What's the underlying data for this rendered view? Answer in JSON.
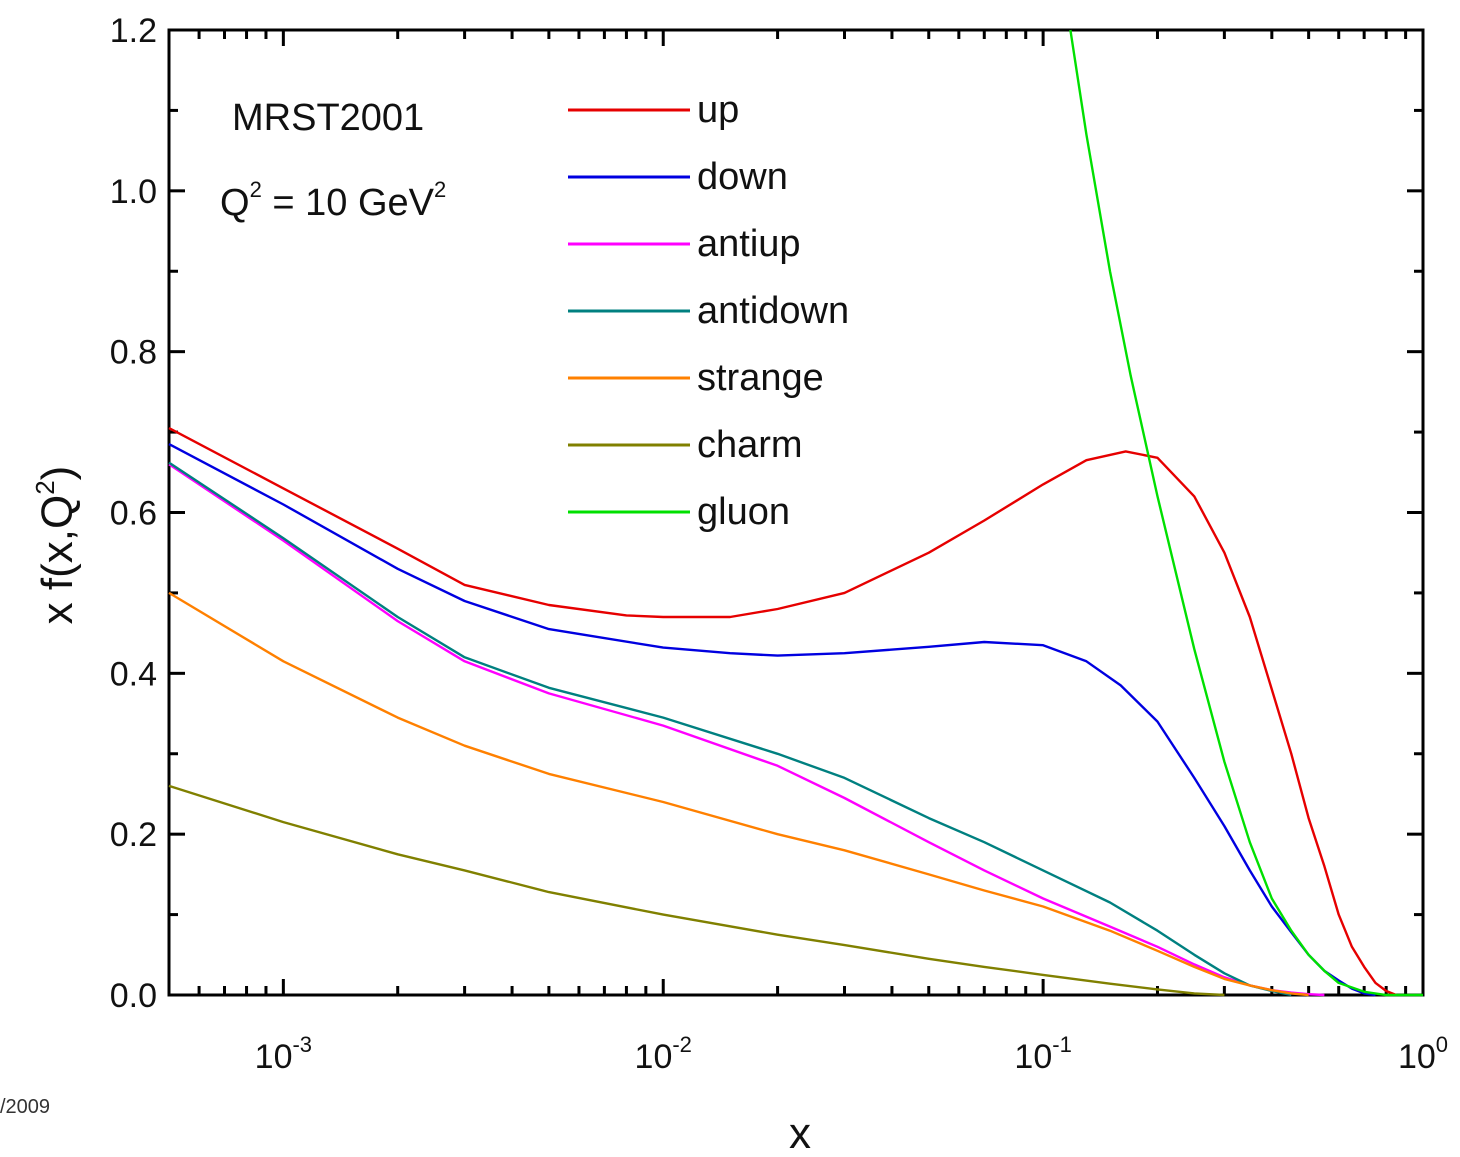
{
  "footer_text": "/2009",
  "chart_data": {
    "type": "line",
    "xlabel": "x",
    "ylabel": "x f(x,Q",
    "ylabel_sup": "2",
    "ylabel_tail": ")",
    "annotation": {
      "line1": "MRST2001",
      "line2_q": "Q",
      "line2_sup": "2",
      "line2_mid": " = 10 GeV",
      "line2_sup2": "2"
    },
    "x_scale": "log",
    "xlim": [
      0.0005,
      1.0
    ],
    "ylim": [
      0.0,
      1.2
    ],
    "x_ticks": [
      {
        "value": 0.001,
        "base": "10",
        "exp": "-3"
      },
      {
        "value": 0.01,
        "base": "10",
        "exp": "-2"
      },
      {
        "value": 0.1,
        "base": "10",
        "exp": "-1"
      },
      {
        "value": 1,
        "base": "10",
        "exp": "0"
      }
    ],
    "y_ticks": [
      {
        "value": 0.0,
        "label": "0.0"
      },
      {
        "value": 0.2,
        "label": "0.2"
      },
      {
        "value": 0.4,
        "label": "0.4"
      },
      {
        "value": 0.6,
        "label": "0.6"
      },
      {
        "value": 0.8,
        "label": "0.8"
      },
      {
        "value": 1.0,
        "label": "1.0"
      },
      {
        "value": 1.2,
        "label": "1.2"
      }
    ],
    "legend_position": "top-center",
    "grid": false,
    "series": [
      {
        "name": "up",
        "color": "#e60000",
        "points": [
          [
            0.0005,
            0.705
          ],
          [
            0.001,
            0.63
          ],
          [
            0.002,
            0.555
          ],
          [
            0.003,
            0.51
          ],
          [
            0.005,
            0.485
          ],
          [
            0.008,
            0.472
          ],
          [
            0.01,
            0.47
          ],
          [
            0.015,
            0.47
          ],
          [
            0.02,
            0.48
          ],
          [
            0.03,
            0.5
          ],
          [
            0.05,
            0.55
          ],
          [
            0.07,
            0.59
          ],
          [
            0.1,
            0.635
          ],
          [
            0.13,
            0.665
          ],
          [
            0.165,
            0.676
          ],
          [
            0.2,
            0.668
          ],
          [
            0.25,
            0.62
          ],
          [
            0.3,
            0.55
          ],
          [
            0.35,
            0.47
          ],
          [
            0.4,
            0.38
          ],
          [
            0.45,
            0.3
          ],
          [
            0.5,
            0.22
          ],
          [
            0.55,
            0.16
          ],
          [
            0.6,
            0.1
          ],
          [
            0.65,
            0.06
          ],
          [
            0.7,
            0.035
          ],
          [
            0.75,
            0.015
          ],
          [
            0.8,
            0.005
          ],
          [
            0.85,
            0.0
          ]
        ]
      },
      {
        "name": "down",
        "color": "#0000e0",
        "points": [
          [
            0.0005,
            0.685
          ],
          [
            0.001,
            0.61
          ],
          [
            0.002,
            0.53
          ],
          [
            0.003,
            0.49
          ],
          [
            0.005,
            0.455
          ],
          [
            0.01,
            0.432
          ],
          [
            0.015,
            0.425
          ],
          [
            0.02,
            0.422
          ],
          [
            0.03,
            0.425
          ],
          [
            0.05,
            0.433
          ],
          [
            0.07,
            0.439
          ],
          [
            0.1,
            0.435
          ],
          [
            0.13,
            0.415
          ],
          [
            0.16,
            0.385
          ],
          [
            0.2,
            0.34
          ],
          [
            0.25,
            0.27
          ],
          [
            0.3,
            0.21
          ],
          [
            0.35,
            0.155
          ],
          [
            0.4,
            0.11
          ],
          [
            0.45,
            0.078
          ],
          [
            0.5,
            0.05
          ],
          [
            0.55,
            0.03
          ],
          [
            0.6,
            0.018
          ],
          [
            0.65,
            0.008
          ],
          [
            0.7,
            0.002
          ],
          [
            0.75,
            0.0
          ]
        ]
      },
      {
        "name": "antiup",
        "color": "#ff00ff",
        "points": [
          [
            0.0005,
            0.66
          ],
          [
            0.001,
            0.565
          ],
          [
            0.002,
            0.465
          ],
          [
            0.003,
            0.415
          ],
          [
            0.005,
            0.375
          ],
          [
            0.01,
            0.335
          ],
          [
            0.02,
            0.285
          ],
          [
            0.03,
            0.245
          ],
          [
            0.05,
            0.19
          ],
          [
            0.07,
            0.155
          ],
          [
            0.1,
            0.12
          ],
          [
            0.15,
            0.085
          ],
          [
            0.2,
            0.06
          ],
          [
            0.25,
            0.038
          ],
          [
            0.3,
            0.022
          ],
          [
            0.35,
            0.012
          ],
          [
            0.4,
            0.006
          ],
          [
            0.45,
            0.003
          ],
          [
            0.5,
            0.001
          ],
          [
            0.55,
            0.0
          ]
        ]
      },
      {
        "name": "antidown",
        "color": "#008080",
        "points": [
          [
            0.0005,
            0.662
          ],
          [
            0.001,
            0.568
          ],
          [
            0.002,
            0.47
          ],
          [
            0.003,
            0.42
          ],
          [
            0.005,
            0.382
          ],
          [
            0.01,
            0.345
          ],
          [
            0.02,
            0.3
          ],
          [
            0.03,
            0.27
          ],
          [
            0.05,
            0.22
          ],
          [
            0.07,
            0.19
          ],
          [
            0.1,
            0.155
          ],
          [
            0.15,
            0.115
          ],
          [
            0.2,
            0.08
          ],
          [
            0.25,
            0.05
          ],
          [
            0.3,
            0.027
          ],
          [
            0.35,
            0.012
          ],
          [
            0.4,
            0.005
          ],
          [
            0.45,
            0.0
          ]
        ]
      },
      {
        "name": "strange",
        "color": "#ff8000",
        "points": [
          [
            0.0005,
            0.5
          ],
          [
            0.001,
            0.415
          ],
          [
            0.002,
            0.345
          ],
          [
            0.003,
            0.31
          ],
          [
            0.005,
            0.275
          ],
          [
            0.01,
            0.24
          ],
          [
            0.02,
            0.2
          ],
          [
            0.03,
            0.18
          ],
          [
            0.05,
            0.15
          ],
          [
            0.07,
            0.13
          ],
          [
            0.1,
            0.11
          ],
          [
            0.15,
            0.08
          ],
          [
            0.2,
            0.055
          ],
          [
            0.25,
            0.035
          ],
          [
            0.3,
            0.02
          ],
          [
            0.35,
            0.012
          ],
          [
            0.4,
            0.006
          ],
          [
            0.45,
            0.002
          ],
          [
            0.5,
            0.0
          ]
        ]
      },
      {
        "name": "charm",
        "color": "#808000",
        "points": [
          [
            0.0005,
            0.26
          ],
          [
            0.001,
            0.215
          ],
          [
            0.002,
            0.175
          ],
          [
            0.003,
            0.155
          ],
          [
            0.005,
            0.128
          ],
          [
            0.01,
            0.1
          ],
          [
            0.02,
            0.075
          ],
          [
            0.03,
            0.062
          ],
          [
            0.05,
            0.045
          ],
          [
            0.07,
            0.035
          ],
          [
            0.1,
            0.025
          ],
          [
            0.15,
            0.014
          ],
          [
            0.2,
            0.007
          ],
          [
            0.25,
            0.002
          ],
          [
            0.3,
            0.0
          ]
        ]
      },
      {
        "name": "gluon",
        "color": "#00e000",
        "points": [
          [
            0.118,
            1.2
          ],
          [
            0.13,
            1.07
          ],
          [
            0.15,
            0.9
          ],
          [
            0.17,
            0.77
          ],
          [
            0.2,
            0.62
          ],
          [
            0.25,
            0.43
          ],
          [
            0.3,
            0.29
          ],
          [
            0.35,
            0.19
          ],
          [
            0.4,
            0.12
          ],
          [
            0.45,
            0.08
          ],
          [
            0.5,
            0.05
          ],
          [
            0.55,
            0.03
          ],
          [
            0.6,
            0.015
          ],
          [
            0.7,
            0.004
          ],
          [
            0.8,
            0.0
          ],
          [
            1.0,
            0.0
          ]
        ]
      }
    ]
  }
}
